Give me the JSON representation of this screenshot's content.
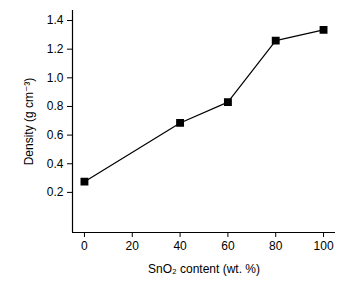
{
  "chart_data": {
    "type": "line",
    "x_label": "SnO₂ content (wt. %)",
    "y_label": "Density (g cm⁻³)",
    "x": [
      0,
      40,
      60,
      80,
      100
    ],
    "values": [
      0.275,
      0.685,
      0.83,
      1.26,
      1.335
    ],
    "color": "#000000",
    "marker": "square",
    "line_style": "solid",
    "xlim": [
      -5,
      105
    ],
    "xticks": [
      0,
      20,
      40,
      60,
      80,
      100
    ],
    "ylim": [
      -0.08,
      1.47
    ],
    "yticks": [
      0.2,
      0.4,
      0.6,
      0.8,
      {
        "value": 1,
        "label": "1.0"
      },
      1.2,
      1.4
    ],
    "grid": false
  }
}
